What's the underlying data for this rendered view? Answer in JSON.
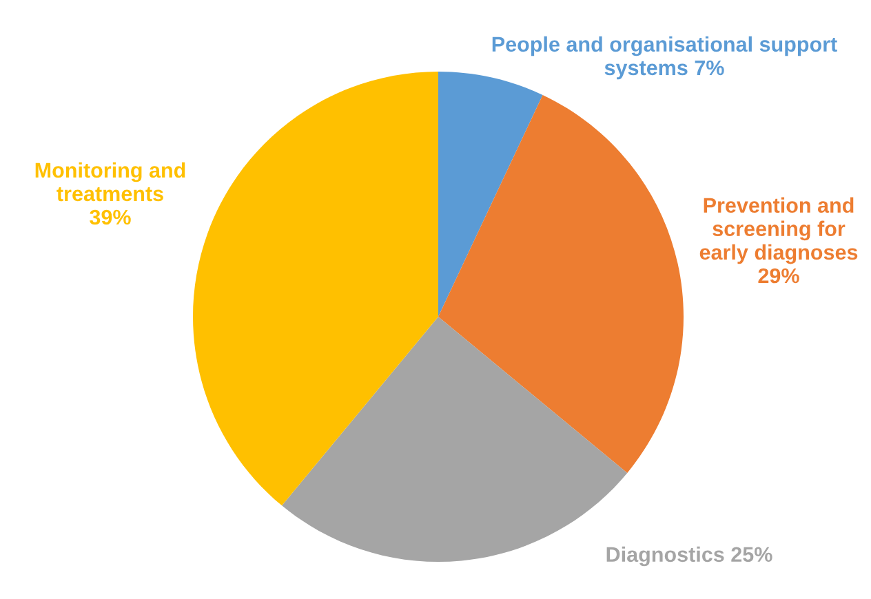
{
  "chart_data": {
    "type": "pie",
    "categories": [
      "People and organisational support systems",
      "Prevention and screening for early diagnoses",
      "Diagnostics",
      "Monitoring and treatments"
    ],
    "values": [
      7,
      29,
      25,
      39
    ],
    "value_labels": [
      "7%",
      "29%",
      "25%",
      "39%"
    ],
    "colors": [
      "#5b9bd5",
      "#ed7d31",
      "#a5a5a5",
      "#ffc000"
    ]
  }
}
